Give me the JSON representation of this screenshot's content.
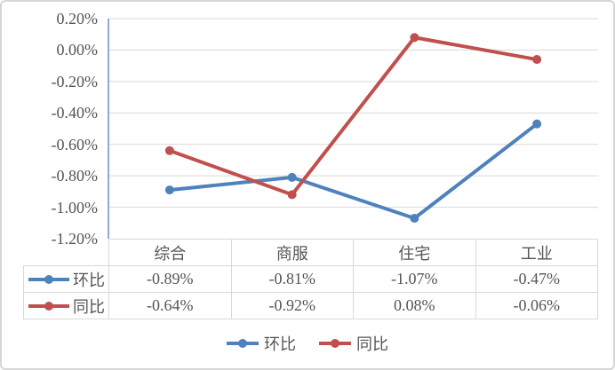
{
  "chart_data": {
    "type": "line",
    "categories": [
      "综合",
      "商服",
      "住宅",
      "工业"
    ],
    "series": [
      {
        "name": "环比",
        "color": "#4F81BD",
        "values": [
          -0.89,
          -0.81,
          -1.07,
          -0.47
        ],
        "display_values": [
          "-0.89%",
          "-0.81%",
          "-1.07%",
          "-0.47%"
        ]
      },
      {
        "name": "同比",
        "color": "#C0504D",
        "values": [
          -0.64,
          -0.92,
          0.08,
          -0.06
        ],
        "display_values": [
          "-0.64%",
          "-0.92%",
          "0.08%",
          "-0.06%"
        ]
      }
    ],
    "ylim": [
      -1.2,
      0.2
    ],
    "ytick_step": 0.2,
    "ytick_labels": [
      "0.20%",
      "0.00%",
      "-0.20%",
      "-0.40%",
      "-0.60%",
      "-0.80%",
      "-1.00%",
      "-1.20%"
    ],
    "grid": true,
    "legend_position": "bottom",
    "data_table_shown": true
  },
  "colors": {
    "gridline": "#D9D9D9",
    "axis_line": "#4472C4",
    "table_border": "#D9D9D9",
    "text": "#555555",
    "frame_border": "#D6D6D6"
  }
}
